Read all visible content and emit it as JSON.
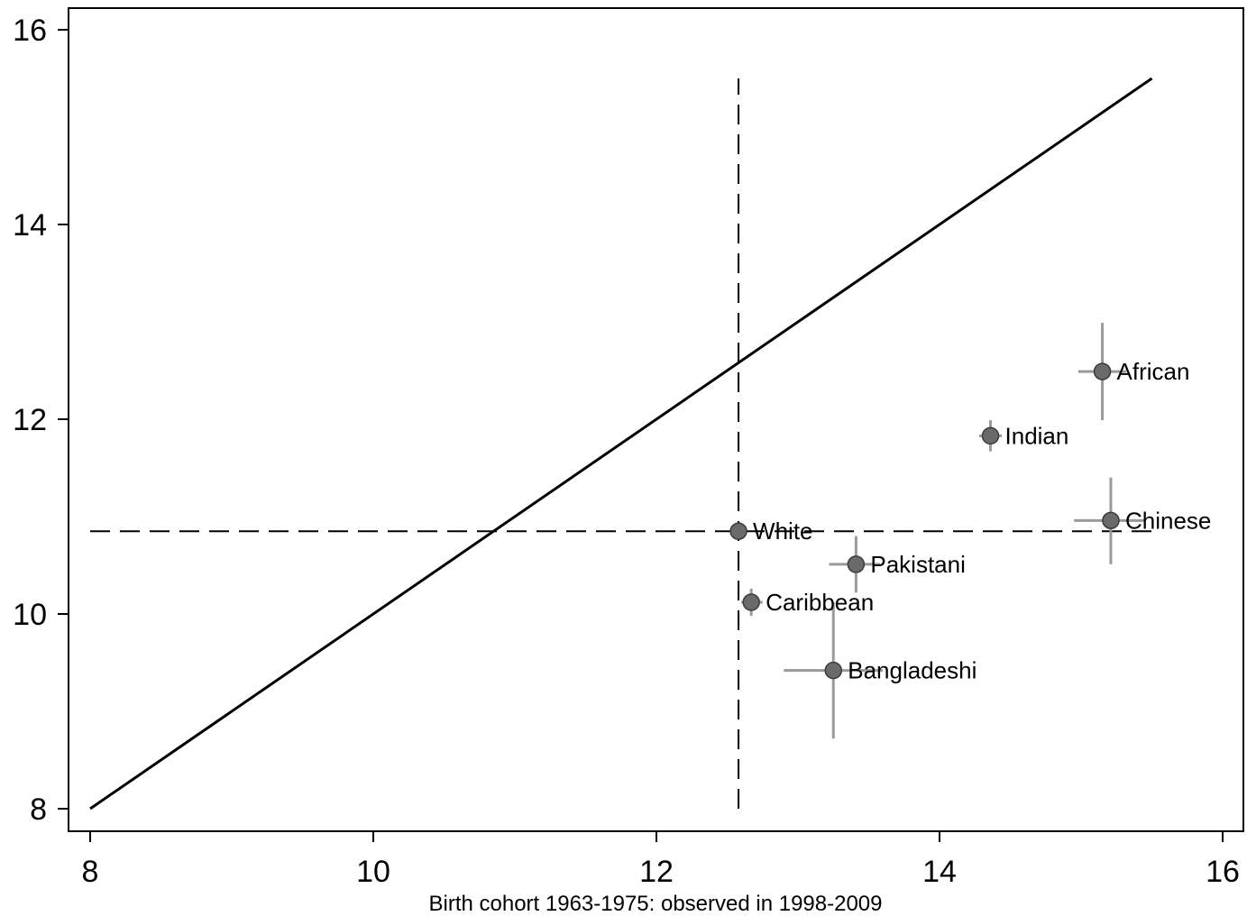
{
  "chart_data": {
    "type": "scatter",
    "title": "",
    "xlabel": "Birth cohort 1963-1975: observed in 1998-2009",
    "ylabel": "",
    "xlim": [
      8,
      16
    ],
    "ylim": [
      8,
      16
    ],
    "xticks": [
      "8",
      "10",
      "12",
      "14",
      "16"
    ],
    "yticks": [
      "8",
      "10",
      "12",
      "14",
      "16"
    ],
    "grid": false,
    "legend": "none",
    "reference_line": {
      "style": "solid",
      "x": [
        8,
        15.5
      ],
      "y": [
        8,
        15.5
      ]
    },
    "mean_lines": {
      "style": "dashed",
      "vertical_x": 12.58,
      "vertical_y_range": [
        8,
        15.5
      ],
      "horizontal_y": 10.85,
      "horizontal_x_range": [
        8,
        15.5
      ]
    },
    "points": [
      {
        "label": "White",
        "x": 12.58,
        "y": 10.85,
        "x_err": [
          12.58,
          12.58
        ],
        "y_err": [
          10.85,
          10.85
        ]
      },
      {
        "label": "Caribbean",
        "x": 12.67,
        "y": 10.12,
        "x_err": [
          12.6,
          12.75
        ],
        "y_err": [
          9.98,
          10.26
        ]
      },
      {
        "label": "Bangladeshi",
        "x": 13.25,
        "y": 9.42,
        "x_err": [
          12.9,
          13.6
        ],
        "y_err": [
          8.72,
          10.12
        ]
      },
      {
        "label": "Pakistani",
        "x": 13.41,
        "y": 10.51,
        "x_err": [
          13.22,
          13.58
        ],
        "y_err": [
          10.22,
          10.8
        ]
      },
      {
        "label": "Indian",
        "x": 14.36,
        "y": 11.83,
        "x_err": [
          14.28,
          14.44
        ],
        "y_err": [
          11.67,
          11.99
        ]
      },
      {
        "label": "African",
        "x": 15.15,
        "y": 12.49,
        "x_err": [
          14.98,
          15.32
        ],
        "y_err": [
          11.99,
          12.99
        ]
      },
      {
        "label": "Chinese",
        "x": 15.21,
        "y": 10.96,
        "x_err": [
          14.95,
          15.45
        ],
        "y_err": [
          10.51,
          11.4
        ]
      }
    ],
    "colors": {
      "line": "#000000",
      "marker": "#6a6a6a",
      "marker_edge": "#3c3c3c",
      "errorbar": "#9a9a9a"
    }
  }
}
